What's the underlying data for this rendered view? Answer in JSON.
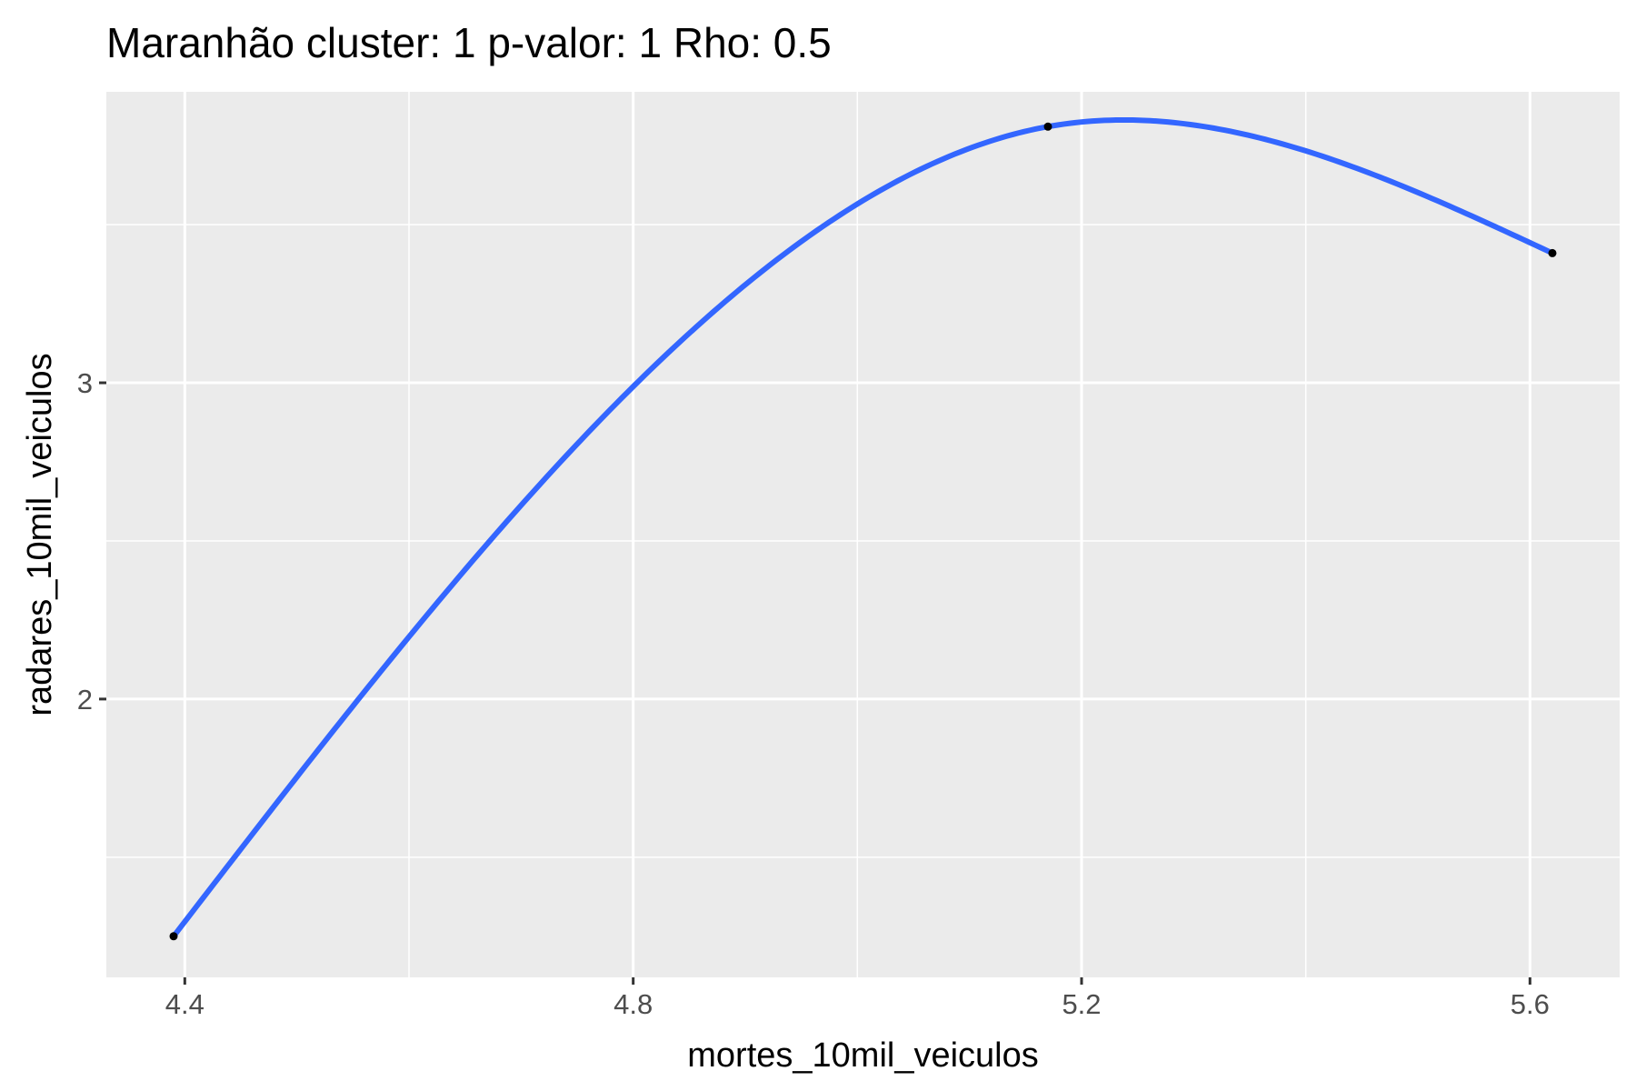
{
  "chart_data": {
    "type": "scatter",
    "title": "Maranhão cluster: 1 p-valor: 1 Rho: 0.5",
    "xlabel": "mortes_10mil_veiculos",
    "ylabel": "radares_10mil_veiculos",
    "xlim": [
      4.33,
      5.68
    ],
    "ylim": [
      1.12,
      3.92
    ],
    "x_ticks": [
      4.4,
      4.8,
      5.2,
      5.6
    ],
    "x_tick_labels": [
      "4.4",
      "4.8",
      "5.2",
      "5.6"
    ],
    "x_minor": [
      4.6,
      5.0,
      5.4
    ],
    "y_ticks": [
      2,
      3
    ],
    "y_tick_labels": [
      "2",
      "3"
    ],
    "y_minor": [
      1.5,
      2.5,
      3.5
    ],
    "points": [
      {
        "x": 4.39,
        "y": 1.25
      },
      {
        "x": 5.17,
        "y": 3.81
      },
      {
        "x": 5.62,
        "y": 3.41
      }
    ],
    "smooth_line": {
      "method": "spline through points",
      "color": "#3366FF"
    },
    "background": "#EBEBEB",
    "grid": true,
    "legend": "none"
  }
}
